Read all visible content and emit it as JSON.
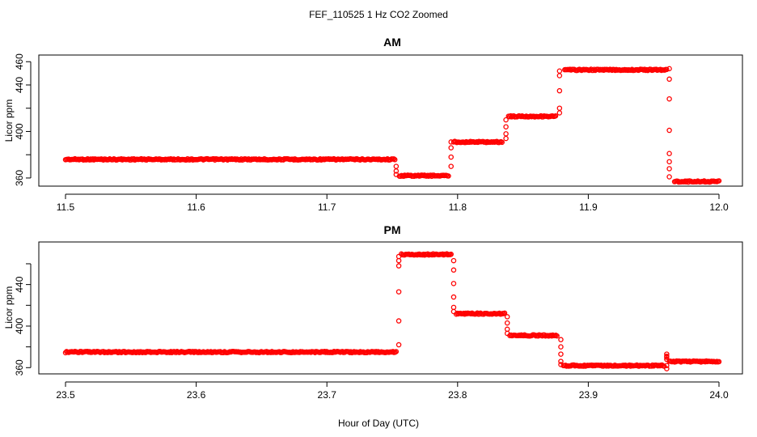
{
  "chart_data": {
    "type": "scatter",
    "title": "FEF_110525  1 Hz CO2 Zoomed",
    "xlabel": "Hour of Day (UTC)",
    "point_color": "#ff0000",
    "panels": [
      {
        "title": "AM",
        "ylabel": "Licor ppm",
        "xlim": [
          11.5,
          12.0
        ],
        "ylim": [
          353,
          472
        ],
        "x_ticks": [
          11.5,
          11.6,
          11.7,
          11.8,
          11.9,
          12.0
        ],
        "x_tick_labels": [
          "11.5",
          "11.6",
          "11.7",
          "11.8",
          "11.9",
          "12.0"
        ],
        "y_ticks": [
          360,
          400,
          440,
          460
        ],
        "y_tick_labels": [
          "360",
          "400",
          "440",
          "460"
        ],
        "y_minor_ticks": [
          380,
          420
        ],
        "segments": [
          {
            "x_start": 11.5,
            "x_end": 11.752,
            "y": 376
          },
          {
            "x_start": 11.7555,
            "x_end": 11.793,
            "y": 362
          },
          {
            "x_start": 11.797,
            "x_end": 11.834,
            "y": 391
          },
          {
            "x_start": 11.839,
            "x_end": 11.875,
            "y": 413
          },
          {
            "x_start": 11.882,
            "x_end": 11.96,
            "y": 453
          },
          {
            "x_start": 11.966,
            "x_end": 12.0,
            "y": 357
          }
        ],
        "transitions": [
          {
            "x": 11.753,
            "y": [
              370,
              366,
              363
            ]
          },
          {
            "x": 11.795,
            "y": [
              370,
              378,
              386,
              391
            ]
          },
          {
            "x": 11.837,
            "y": [
              394,
              398,
              404,
              410
            ]
          },
          {
            "x": 11.878,
            "y": [
              416,
              420,
              435,
              448,
              452
            ]
          },
          {
            "x": 11.962,
            "y": [
              454,
              445,
              428,
              401,
              381,
              374,
              368,
              361
            ]
          }
        ]
      },
      {
        "title": "PM",
        "ylabel": "Licor ppm",
        "xlim": [
          23.5,
          24.0
        ],
        "ylim": [
          354,
          481
        ],
        "x_ticks": [
          23.5,
          23.6,
          23.7,
          23.8,
          23.9,
          24.0
        ],
        "x_tick_labels": [
          "23.5",
          "23.6",
          "23.7",
          "23.8",
          "23.9",
          "24.0"
        ],
        "y_ticks": [
          360,
          400,
          440
        ],
        "y_tick_labels": [
          "360",
          "400",
          "440"
        ],
        "y_minor_ticks": [
          380,
          420,
          460
        ],
        "segments": [
          {
            "x_start": 23.5,
            "x_end": 23.753,
            "y": 375
          },
          {
            "x_start": 23.757,
            "x_end": 23.795,
            "y": 469
          },
          {
            "x_start": 23.799,
            "x_end": 23.836,
            "y": 412
          },
          {
            "x_start": 23.84,
            "x_end": 23.876,
            "y": 391
          },
          {
            "x_start": 23.881,
            "x_end": 23.958,
            "y": 362
          },
          {
            "x_start": 23.962,
            "x_end": 24.0,
            "y": 366
          }
        ],
        "transitions": [
          {
            "x": 23.755,
            "y": [
              382,
              405,
              433,
              458,
              463,
              467
            ]
          },
          {
            "x": 23.797,
            "y": [
              463,
              454,
              441,
              428,
              418,
              414
            ]
          },
          {
            "x": 23.838,
            "y": [
              409,
              403,
              397,
              393
            ]
          },
          {
            "x": 23.879,
            "y": [
              387,
              380,
              373,
              366,
              363
            ]
          },
          {
            "x": 23.96,
            "y": [
              359,
              362,
              370,
              373,
              371,
              368
            ]
          }
        ]
      }
    ]
  }
}
